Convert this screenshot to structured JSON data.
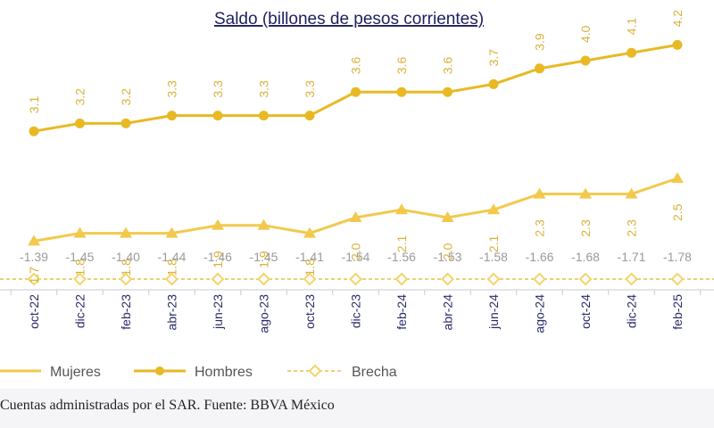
{
  "colors": {
    "mujeres": "#f2c94c",
    "hombres": "#e8b923",
    "brecha_line": "#e6c04a",
    "brecha_marker": "#f5d36a",
    "gap_label": "#9a9a9a",
    "axis_text": "#2a2a6a",
    "title": "#1f1f60"
  },
  "chart_data": {
    "type": "line",
    "title": "Saldo (billones de pesos corrientes)",
    "categories": [
      "oct-22",
      "dic-22",
      "feb-23",
      "abr-23",
      "jun-23",
      "ago-23",
      "oct-23",
      "dic-23",
      "feb-24",
      "abr-24",
      "jun-24",
      "ago-24",
      "oct-24",
      "dic-24",
      "feb-25"
    ],
    "series": [
      {
        "name": "Hombres",
        "marker": "circle",
        "values": [
          3.1,
          3.2,
          3.2,
          3.3,
          3.3,
          3.3,
          3.3,
          3.6,
          3.6,
          3.6,
          3.7,
          3.9,
          4.0,
          4.1,
          4.2
        ],
        "labels": [
          "3.1",
          "3.2",
          "3.2",
          "3.3",
          "3.3",
          "3.3",
          "3.3",
          "3.6",
          "3.6",
          "3.6",
          "3.7",
          "3.9",
          "4.0",
          "4.1",
          "4.2"
        ]
      },
      {
        "name": "Mujeres",
        "marker": "triangle",
        "values": [
          1.7,
          1.8,
          1.8,
          1.8,
          1.9,
          1.9,
          1.8,
          2.0,
          2.1,
          2.0,
          2.1,
          2.3,
          2.3,
          2.3,
          2.5
        ],
        "labels": [
          "1.7",
          "1.8",
          "1.8",
          "1.8",
          "1.9",
          "1.9",
          "1.8",
          "2.0",
          "2.1",
          "2.0",
          "2.1",
          "2.3",
          "2.3",
          "2.3",
          "2.5"
        ]
      },
      {
        "name": "Brecha",
        "marker": "diamond",
        "values": [
          -1.39,
          -1.45,
          -1.4,
          -1.44,
          -1.46,
          -1.45,
          -1.41,
          -1.54,
          -1.56,
          -1.53,
          -1.58,
          -1.66,
          -1.68,
          -1.71,
          -1.78
        ],
        "labels": [
          "-1.39",
          "-1.45",
          "-1.40",
          "-1.44",
          "-1.46",
          "-1.45",
          "-1.41",
          "-1.54",
          "-1.56",
          "-1.53",
          "-1.58",
          "-1.66",
          "-1.68",
          "-1.71",
          "-1.78"
        ]
      }
    ],
    "legend": [
      "Mujeres",
      "Hombres",
      "Brecha"
    ],
    "legend_position": "bottom",
    "grid": false
  },
  "caption": "Cuentas administradas por el SAR. Fuente: BBVA México"
}
